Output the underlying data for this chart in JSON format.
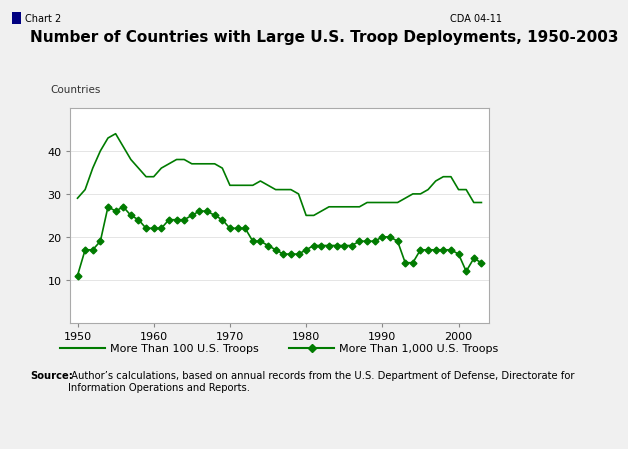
{
  "title": "Number of Countries with Large U.S. Troop Deployments, 1950-2003",
  "chart_label": "Chart 2",
  "cda_label": "CDA 04-11",
  "ylabel": "Countries",
  "source_bold": "Source:",
  "source_rest": " Author’s calculations, based on annual records from the U.S. Department of Defense, Directorate for\nInformation Operations and Reports.",
  "legend": [
    "More Than 100 U.S. Troops",
    "More Than 1,000 U.S. Troops"
  ],
  "years": [
    1950,
    1951,
    1952,
    1953,
    1954,
    1955,
    1956,
    1957,
    1958,
    1959,
    1960,
    1961,
    1962,
    1963,
    1964,
    1965,
    1966,
    1967,
    1968,
    1969,
    1970,
    1971,
    1972,
    1973,
    1974,
    1975,
    1976,
    1977,
    1978,
    1979,
    1980,
    1981,
    1982,
    1983,
    1984,
    1985,
    1986,
    1987,
    1988,
    1989,
    1990,
    1991,
    1992,
    1993,
    1994,
    1995,
    1996,
    1997,
    1998,
    1999,
    2000,
    2001,
    2002,
    2003
  ],
  "series_100": [
    29,
    31,
    36,
    40,
    43,
    44,
    41,
    38,
    36,
    34,
    34,
    36,
    37,
    38,
    38,
    37,
    37,
    37,
    37,
    36,
    32,
    32,
    32,
    32,
    33,
    32,
    31,
    31,
    31,
    30,
    25,
    25,
    26,
    27,
    27,
    27,
    27,
    27,
    28,
    28,
    28,
    28,
    28,
    29,
    30,
    30,
    31,
    33,
    34,
    34,
    31,
    31,
    28,
    28
  ],
  "series_1000": [
    11,
    17,
    17,
    19,
    27,
    26,
    27,
    25,
    24,
    22,
    22,
    22,
    24,
    24,
    24,
    25,
    26,
    26,
    25,
    24,
    22,
    22,
    22,
    19,
    19,
    18,
    17,
    16,
    16,
    16,
    17,
    18,
    18,
    18,
    18,
    18,
    18,
    19,
    19,
    19,
    20,
    20,
    19,
    14,
    14,
    17,
    17,
    17,
    17,
    17,
    16,
    12,
    15,
    14
  ],
  "color": "#007b00",
  "ylim": [
    0,
    50
  ],
  "yticks": [
    10,
    20,
    30,
    40
  ],
  "xticks": [
    1950,
    1960,
    1970,
    1980,
    1990,
    2000
  ],
  "bg_color": "#f0f0f0",
  "plot_bg": "#ffffff",
  "title_bar_bg": "#d4d0c8",
  "title_bar_text_color": "#000000",
  "title_icon_color": "#000080"
}
